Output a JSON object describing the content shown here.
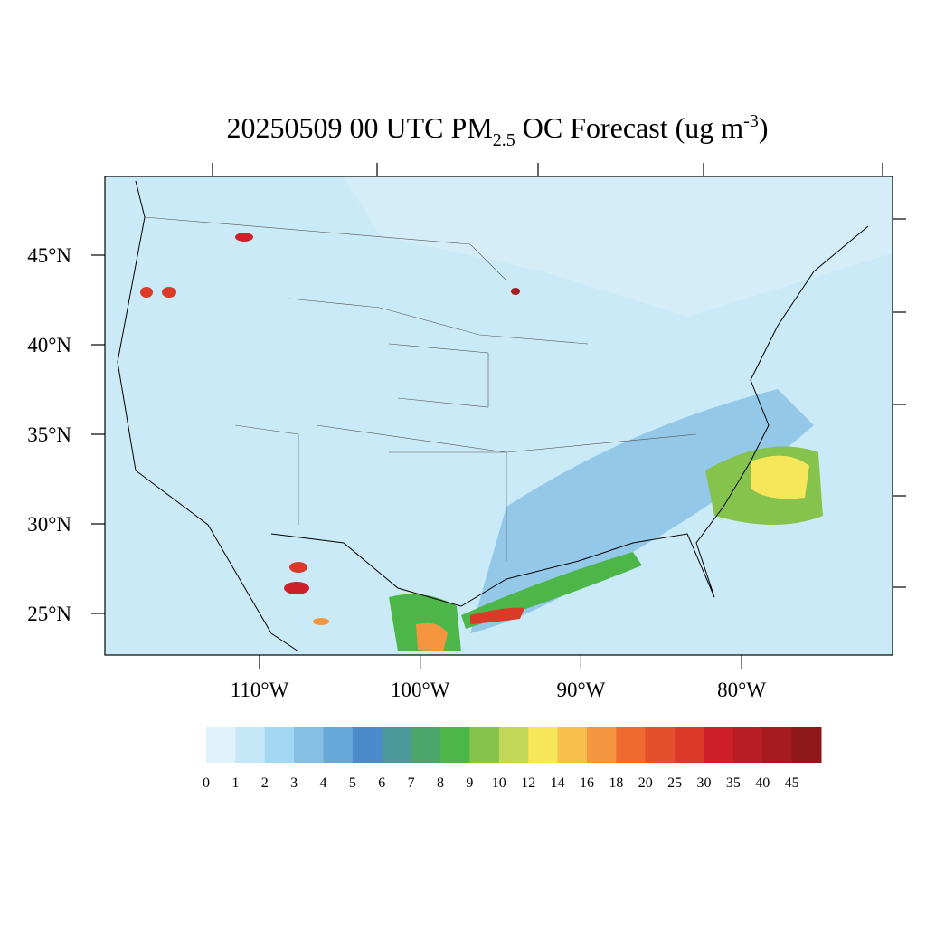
{
  "title": {
    "prefix": "20250509 00 UTC PM",
    "subscript": "2.5",
    "middle": " OC Forecast (ug m",
    "superscript": "-3",
    "suffix": ")"
  },
  "lat_ticks": [
    {
      "value": 45,
      "label": "45°N"
    },
    {
      "value": 40,
      "label": "40°N"
    },
    {
      "value": 35,
      "label": "35°N"
    },
    {
      "value": 30,
      "label": "30°N"
    },
    {
      "value": 25,
      "label": "25°N"
    }
  ],
  "lon_ticks": [
    {
      "value": 110,
      "label": "110°W"
    },
    {
      "value": 100,
      "label": "100°W"
    },
    {
      "value": 90,
      "label": "90°W"
    },
    {
      "value": 80,
      "label": "80°W"
    }
  ],
  "colorbar": {
    "levels": [
      0,
      1,
      2,
      3,
      4,
      5,
      6,
      7,
      8,
      9,
      10,
      12,
      14,
      16,
      18,
      20,
      25,
      30,
      35,
      40,
      45
    ],
    "colors": [
      "#e0f3fb",
      "#c5e7f7",
      "#a3d8f3",
      "#85bfe4",
      "#66a8d8",
      "#4a8ccb",
      "#4a9a9c",
      "#4aa56b",
      "#4db648",
      "#85c34d",
      "#c2d657",
      "#f6e65a",
      "#f8be4b",
      "#f5953f",
      "#ef6a2f",
      "#e4502b",
      "#dc3a29",
      "#cf1f2a",
      "#b81c25",
      "#a51b20",
      "#8e1719"
    ]
  }
}
